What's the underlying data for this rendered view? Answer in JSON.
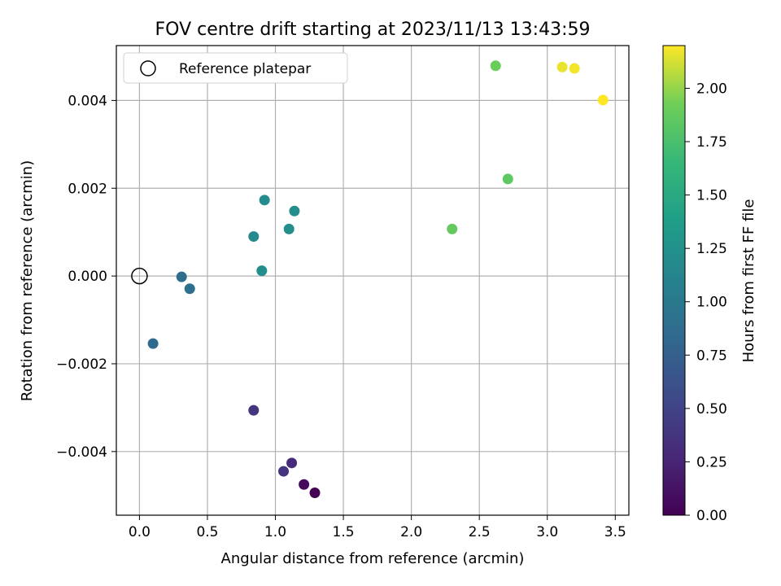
{
  "chart_data": {
    "type": "scatter",
    "title": "FOV centre drift starting at 2023/11/13 13:43:59",
    "xlabel": "Angular distance from reference (arcmin)",
    "ylabel": "Rotation from reference (arcmin)",
    "xlim": [
      -0.17,
      3.6
    ],
    "ylim": [
      -0.00545,
      0.00525
    ],
    "xticks": [
      0.0,
      0.5,
      1.0,
      1.5,
      2.0,
      2.5,
      3.0,
      3.5
    ],
    "xtick_labels": [
      "0.0",
      "0.5",
      "1.0",
      "1.5",
      "2.0",
      "2.5",
      "3.0",
      "3.5"
    ],
    "yticks": [
      -0.004,
      -0.002,
      0.0,
      0.002,
      0.004
    ],
    "ytick_labels": [
      "−0.004",
      "−0.002",
      "0.000",
      "0.002",
      "0.004"
    ],
    "grid": true,
    "legend": {
      "placement": "top-left",
      "entries": [
        "Reference platepar"
      ]
    },
    "reference_point": {
      "x": 0.0,
      "y": 0.0
    },
    "colorbar": {
      "label": "Hours from first FF file",
      "colormap": "viridis",
      "range": [
        0.0,
        2.2
      ],
      "ticks": [
        0.0,
        0.25,
        0.5,
        0.75,
        1.0,
        1.25,
        1.5,
        1.75,
        2.0
      ],
      "tick_labels": [
        "0.00",
        "0.25",
        "0.50",
        "0.75",
        "1.00",
        "1.25",
        "1.50",
        "1.75",
        "2.00"
      ]
    },
    "points": [
      {
        "x": 1.29,
        "y": -0.00494,
        "hours": 0.0
      },
      {
        "x": 1.21,
        "y": -0.00475,
        "hours": 0.08
      },
      {
        "x": 1.12,
        "y": -0.00426,
        "hours": 0.3
      },
      {
        "x": 1.06,
        "y": -0.00445,
        "hours": 0.36
      },
      {
        "x": 0.84,
        "y": -0.00306,
        "hours": 0.38
      },
      {
        "x": 0.1,
        "y": -0.00154,
        "hours": 0.85
      },
      {
        "x": 0.31,
        "y": -2e-05,
        "hours": 0.88
      },
      {
        "x": 0.37,
        "y": -0.00029,
        "hours": 0.9
      },
      {
        "x": 0.9,
        "y": 0.00012,
        "hours": 1.2
      },
      {
        "x": 0.84,
        "y": 0.0009,
        "hours": 1.18
      },
      {
        "x": 1.1,
        "y": 0.00107,
        "hours": 1.22
      },
      {
        "x": 0.92,
        "y": 0.00173,
        "hours": 1.2
      },
      {
        "x": 1.14,
        "y": 0.00148,
        "hours": 1.22
      },
      {
        "x": 2.3,
        "y": 0.00107,
        "hours": 1.88
      },
      {
        "x": 2.71,
        "y": 0.00221,
        "hours": 1.85
      },
      {
        "x": 2.62,
        "y": 0.00479,
        "hours": 1.9
      },
      {
        "x": 3.11,
        "y": 0.00476,
        "hours": 2.16
      },
      {
        "x": 3.2,
        "y": 0.00473,
        "hours": 2.18
      },
      {
        "x": 3.41,
        "y": 0.00401,
        "hours": 2.2
      }
    ]
  }
}
